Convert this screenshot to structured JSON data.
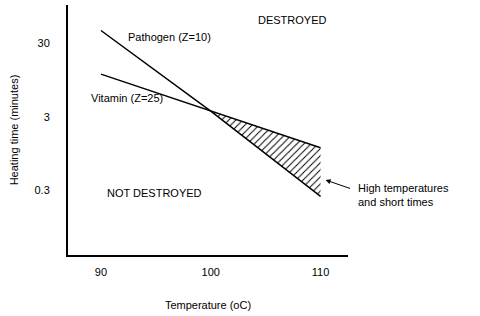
{
  "chart_data": {
    "type": "line",
    "x_label": "Temperature (oC)",
    "y_label": "Heating time (minutes)",
    "x": [
      90,
      100,
      110
    ],
    "series": [
      {
        "name": "Pathogen (Z=10)",
        "color": "#000000",
        "values": [
          45,
          3.6,
          0.25
        ]
      },
      {
        "name": "Vitamin (Z=25)",
        "color": "#000000",
        "values": [
          11.5,
          3.6,
          1.15
        ]
      }
    ],
    "annotations": [
      "DESTROYED",
      "NOT DESTROYED",
      "High temperatures\nand short times"
    ],
    "xlim": [
      87,
      112.5
    ],
    "ylim": [
      0.04,
      100
    ],
    "xticks": [
      90,
      100,
      110
    ],
    "yticks": [
      0.3,
      3,
      30
    ],
    "log": "y",
    "grid": false
  }
}
